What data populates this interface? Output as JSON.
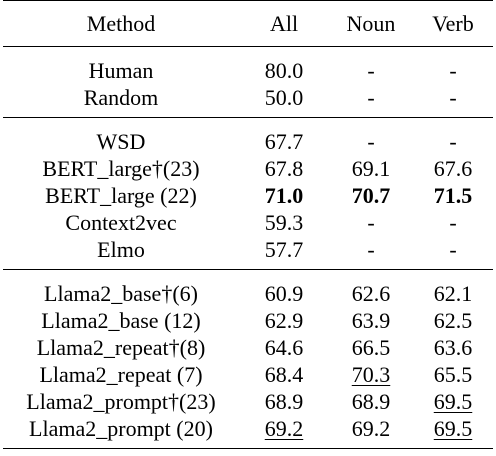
{
  "table": {
    "headers": [
      "Method",
      "All",
      "Noun",
      "Verb"
    ],
    "groups": [
      {
        "rows": [
          {
            "method": "Human",
            "all": "80.0",
            "noun": "-",
            "verb": "-"
          },
          {
            "method": "Random",
            "all": "50.0",
            "noun": "-",
            "verb": "-"
          }
        ]
      },
      {
        "rows": [
          {
            "method": "WSD",
            "all": "67.7",
            "noun": "-",
            "verb": "-"
          },
          {
            "method": "BERT_large†(23)",
            "all": "67.8",
            "noun": "69.1",
            "verb": "67.6"
          },
          {
            "method": "BERT_large (22)",
            "all": "71.0",
            "noun": "70.7",
            "verb": "71.5",
            "bold": [
              "all",
              "noun",
              "verb"
            ]
          },
          {
            "method": "Context2vec",
            "all": "59.3",
            "noun": "-",
            "verb": "-"
          },
          {
            "method": "Elmo",
            "all": "57.7",
            "noun": "-",
            "verb": "-"
          }
        ]
      },
      {
        "rows": [
          {
            "method": "Llama2_base†(6)",
            "all": "60.9",
            "noun": "62.6",
            "verb": "62.1"
          },
          {
            "method": "Llama2_base (12)",
            "all": "62.9",
            "noun": "63.9",
            "verb": "62.5"
          },
          {
            "method": "Llama2_repeat†(8)",
            "all": "64.6",
            "noun": "66.5",
            "verb": "63.6"
          },
          {
            "method": "Llama2_repeat (7)",
            "all": "68.4",
            "noun": "70.3",
            "verb": "65.5",
            "underline": [
              "noun"
            ]
          },
          {
            "method": "Llama2_prompt†(23)",
            "all": "68.9",
            "noun": "68.9",
            "verb": "69.5",
            "underline": [
              "verb"
            ]
          },
          {
            "method": "Llama2_prompt (20)",
            "all": "69.2",
            "noun": "69.2",
            "verb": "69.5",
            "underline": [
              "all",
              "verb"
            ]
          }
        ]
      }
    ]
  }
}
